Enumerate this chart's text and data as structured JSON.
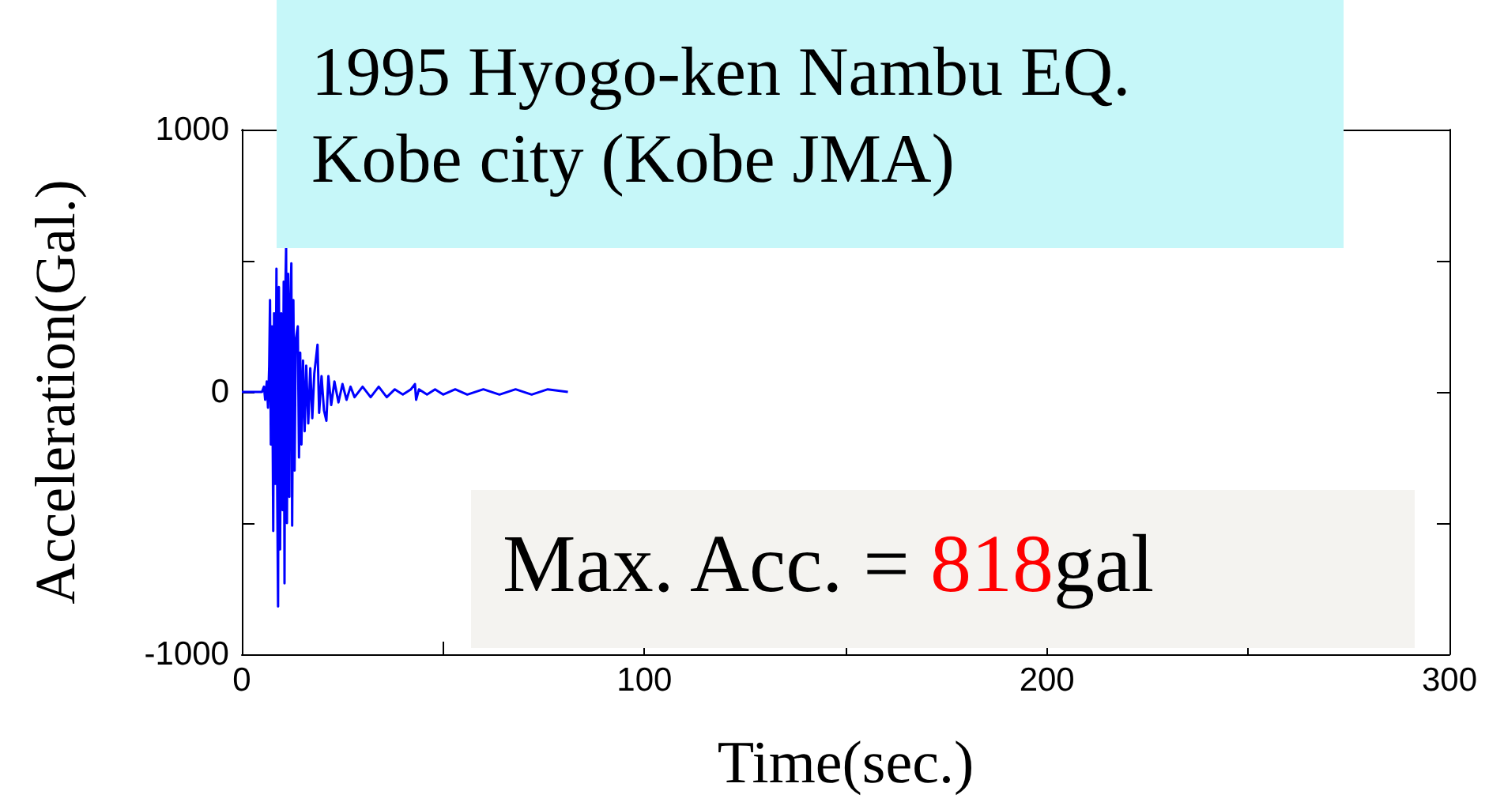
{
  "chart_data": {
    "type": "line",
    "xlabel": "Time(sec.)",
    "ylabel": "Acceleration(Gal.)",
    "annotations": [
      "1995 Hyogo-ken Nambu EQ.",
      "Kobe city (Kobe JMA)",
      "Max. Acc. = 818gal"
    ],
    "xlim": [
      0,
      300
    ],
    "xticks": [
      0,
      {
        "value": 50,
        "label": null
      },
      100,
      {
        "value": 150,
        "label": null
      },
      200,
      {
        "value": 250,
        "label": null
      },
      300
    ],
    "ylim": [
      -1000,
      1000
    ],
    "yticks": [
      -1000,
      {
        "value": -500,
        "label": null
      },
      0,
      {
        "value": 500,
        "label": null
      },
      1000
    ],
    "grid": false,
    "marker": "none",
    "line_style": "solid",
    "series": [
      {
        "color": "#0000ff",
        "x": [
          0,
          5,
          5.5,
          5.8,
          6.2,
          6.5,
          6.8,
          7.0,
          7.2,
          7.5,
          7.8,
          8.0,
          8.3,
          8.6,
          8.8,
          9.0,
          9.2,
          9.5,
          9.8,
          10.1,
          10.4,
          10.6,
          10.8,
          11.0,
          11.2,
          11.5,
          11.8,
          12.0,
          12.3,
          12.5,
          12.8,
          13.1,
          13.4,
          13.9,
          14.2,
          14.5,
          14.8,
          15.2,
          15.6,
          16,
          16.5,
          17,
          17.5,
          18,
          18.8,
          19.2,
          19.8,
          20.4,
          21,
          21.5,
          22.2,
          23,
          24,
          25,
          26,
          27,
          28,
          30,
          32,
          34,
          36,
          38,
          40,
          42,
          43,
          43.3,
          44,
          46,
          48,
          50,
          53,
          56,
          60,
          64,
          68,
          72,
          76,
          81
        ],
        "values": [
          0,
          0,
          20,
          -30,
          40,
          -60,
          100,
          350,
          -200,
          250,
          -530,
          300,
          -350,
          470,
          -400,
          -818,
          400,
          -600,
          300,
          -450,
          420,
          -730,
          380,
          550,
          -500,
          450,
          -400,
          300,
          490,
          -510,
          350,
          -300,
          200,
          250,
          -250,
          150,
          -200,
          120,
          -150,
          100,
          -120,
          90,
          -100,
          70,
          180,
          -80,
          60,
          -70,
          -110,
          60,
          -50,
          40,
          -40,
          30,
          -30,
          20,
          -20,
          20,
          -20,
          20,
          -20,
          10,
          -10,
          10,
          30,
          -30,
          10,
          -10,
          10,
          -10,
          10,
          -10,
          10,
          -10,
          10,
          -10,
          10,
          0
        ]
      }
    ]
  }
}
